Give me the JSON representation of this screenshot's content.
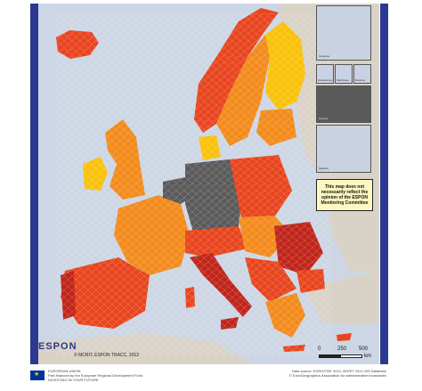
{
  "map": {
    "title": "",
    "disclaimer": "This map does not necessarily reflect the opinion of the ESPON Monitoring Committee",
    "copyright": "© MCRIT, ESPON TRACC, 2012",
    "logo_text": "ESPON",
    "scale": {
      "ticks": [
        "0",
        "250",
        "500"
      ],
      "unit": "km"
    },
    "insets": [
      {
        "label": "Canarias"
      },
      {
        "label": "Guadeloupe"
      },
      {
        "label": "Martinique"
      },
      {
        "label": "Réunion"
      },
      {
        "label": "Guyane"
      },
      {
        "label": "Madeira"
      }
    ],
    "colors": {
      "sea": "#cdd6e4",
      "non_eu_land": "#d9d2c7",
      "class_1": "#fff200",
      "class_2": "#f9c20a",
      "class_3": "#f38b1c",
      "class_4": "#e8451e",
      "class_5": "#c0251a",
      "no_data": "#5a5a5a",
      "boundary": "#ffffff",
      "frame": "#2b3990"
    }
  },
  "footer": {
    "eu_line1": "EUROPEAN UNION",
    "eu_line2": "Part-financed by the European Regional Development Fund",
    "eu_line3": "INVESTING IN YOUR FUTURE",
    "source_line1": "Data source: EUROSTAT 2012, MCRIT 2012 GIS Database",
    "source_line2": "© EuroGeographics Association for administrative boundaries"
  }
}
